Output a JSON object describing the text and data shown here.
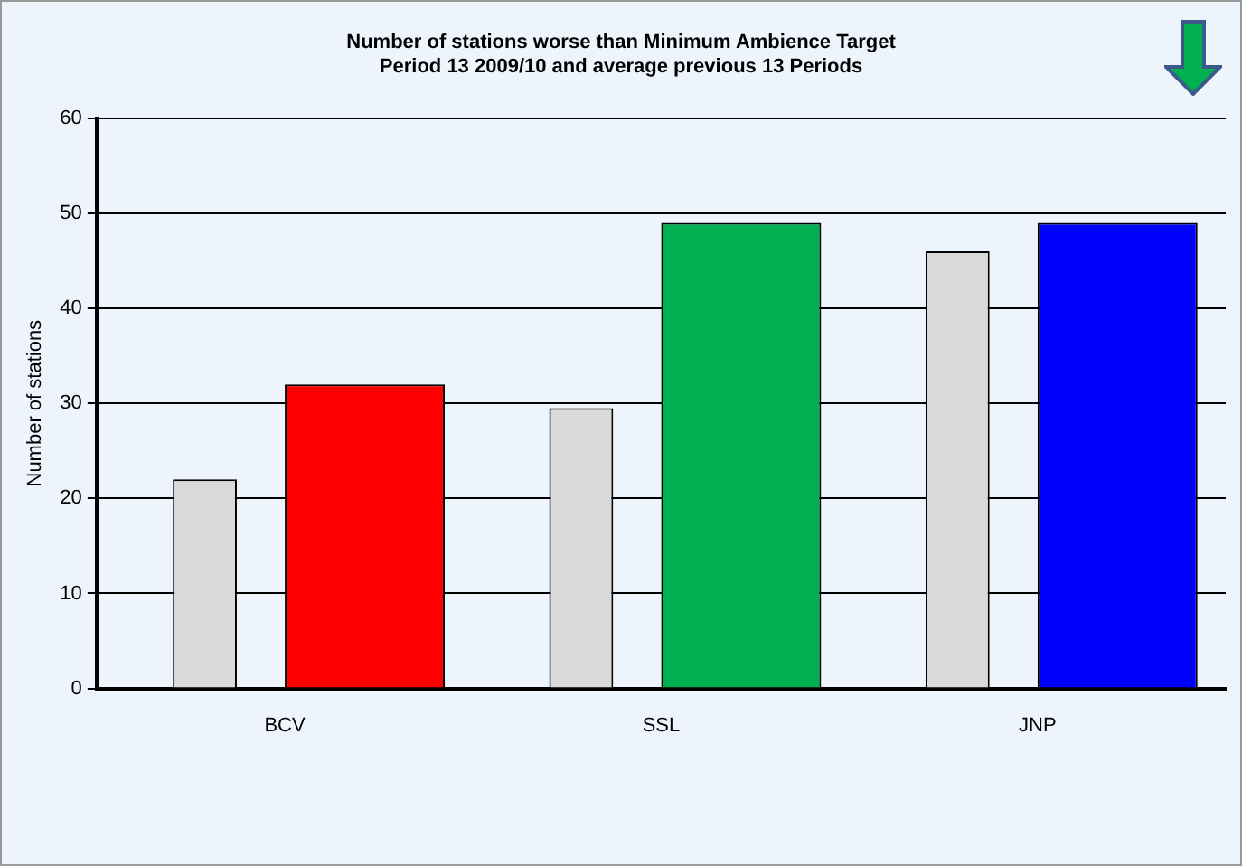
{
  "chart_data": {
    "type": "bar",
    "title": "Number of stations worse than Minimum Ambience Target",
    "subtitle": "Period 13 2009/10 and average previous 13 Periods",
    "ylabel": "Number of stations",
    "categories": [
      "BCV",
      "SSL",
      "JNP"
    ],
    "series": [
      {
        "color": "#d9d9d9",
        "values": [
          22,
          29.5,
          46
        ]
      },
      {
        "colors": [
          "#ff0000",
          "#00b050",
          "#0000ff"
        ],
        "values": [
          32,
          49,
          49
        ]
      }
    ],
    "ylim": [
      0,
      60
    ],
    "yticks": [
      0,
      10,
      20,
      30,
      40,
      50,
      60
    ],
    "grid": "y",
    "legend": false
  }
}
